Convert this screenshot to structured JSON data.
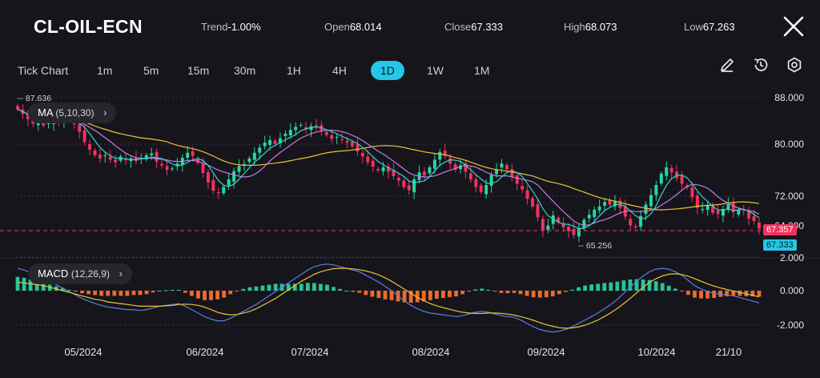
{
  "header": {
    "symbol": "CL-OIL-ECN",
    "trend": {
      "label": "Trend",
      "value": "-1.00%"
    },
    "open": {
      "label": "Open",
      "value": "68.014"
    },
    "close": {
      "label": "Close",
      "value": "67.333"
    },
    "high": {
      "label": "High",
      "value": "68.073"
    },
    "low": {
      "label": "Low",
      "value": "67.263"
    },
    "close_icon": "close-x-icon"
  },
  "timeframes": [
    {
      "label": "Tick Chart",
      "active": false
    },
    {
      "label": "1m",
      "active": false
    },
    {
      "label": "5m",
      "active": false
    },
    {
      "label": "15m",
      "active": false
    },
    {
      "label": "30m",
      "active": false
    },
    {
      "label": "1H",
      "active": false
    },
    {
      "label": "4H",
      "active": false
    },
    {
      "label": "1D",
      "active": true
    },
    {
      "label": "1W",
      "active": false
    },
    {
      "label": "1M",
      "active": false
    }
  ],
  "tools": [
    "pencil-icon",
    "history-icon",
    "settings-icon"
  ],
  "main_pane": {
    "indicator": {
      "name": "MA",
      "params": "(5,10,30)"
    },
    "y_ticks": [
      "88.000",
      "80.000",
      "72.000",
      "64.000"
    ],
    "max_label": "87.636",
    "min_label": "65.256",
    "price_badge_red": "67.357",
    "price_badge_cyan": "67.333"
  },
  "macd_pane": {
    "indicator": {
      "name": "MACD",
      "params": "(12,26,9)"
    },
    "y_ticks": [
      "2.000",
      "0.000",
      "-2.000"
    ]
  },
  "x_labels": [
    "05/2024",
    "06/2024",
    "07/2024",
    "08/2024",
    "09/2024",
    "10/2024",
    "21/10"
  ],
  "colors": {
    "background": "#16151c",
    "up": "#26d8a1",
    "down": "#f1325f",
    "ma5": "#2fd6d0",
    "ma10": "#c27ee6",
    "ma30": "#e8c537",
    "macd_line": "#5b7fe0",
    "signal_line": "#e8c537",
    "hist_pos": "#26c598",
    "hist_neg": "#f06a2c",
    "accent": "#25c6e6"
  },
  "chart_data": {
    "type": "candlestick",
    "x_range": [
      "2024-04-24",
      "2024-10-23"
    ],
    "ylim": [
      62,
      90
    ],
    "closes": [
      86.2,
      85.4,
      84.6,
      83.9,
      84.5,
      83.6,
      84.2,
      84.8,
      84.0,
      84.9,
      84.4,
      83.8,
      82.6,
      81.0,
      79.8,
      78.9,
      78.4,
      78.9,
      78.2,
      77.8,
      78.7,
      78.1,
      78.4,
      78.0,
      78.5,
      78.9,
      79.2,
      77.9,
      77.3,
      76.6,
      76.8,
      77.6,
      78.5,
      79.3,
      78.8,
      77.7,
      76.1,
      74.6,
      73.3,
      72.9,
      73.9,
      75.1,
      76.4,
      77.2,
      77.5,
      78.4,
      79.3,
      80.1,
      80.9,
      81.3,
      80.7,
      81.6,
      82.3,
      82.9,
      83.4,
      83.7,
      83.0,
      83.5,
      83.3,
      82.8,
      82.1,
      81.5,
      81.8,
      81.3,
      80.9,
      80.3,
      79.5,
      78.7,
      77.8,
      77.1,
      76.5,
      77.0,
      76.3,
      75.6,
      74.9,
      73.9,
      73.4,
      75.1,
      76.2,
      75.7,
      77.0,
      78.2,
      79.4,
      78.8,
      77.6,
      76.6,
      77.3,
      76.3,
      75.1,
      73.9,
      73.1,
      74.2,
      75.8,
      76.6,
      77.6,
      76.7,
      75.5,
      74.4,
      73.5,
      72.0,
      70.8,
      69.1,
      67.1,
      67.8,
      69.4,
      68.3,
      67.5,
      66.9,
      66.3,
      67.4,
      68.7,
      69.5,
      70.3,
      70.8,
      71.5,
      71.1,
      71.7,
      70.6,
      69.2,
      67.8,
      67.5,
      69.3,
      71.1,
      72.6,
      74.2,
      76.0,
      77.0,
      76.2,
      75.3,
      74.4,
      73.8,
      72.3,
      70.6,
      70.4,
      71.0,
      69.8,
      69.6,
      70.4,
      71.2,
      69.9,
      70.3,
      70.1,
      68.9,
      68.5,
      67.3
    ],
    "macd": [
      1.3,
      1.2,
      1.05,
      0.9,
      0.7,
      0.55,
      0.35,
      0.15,
      -0.05,
      -0.25,
      -0.45,
      -0.6,
      -0.75,
      -0.85,
      -0.95,
      -1.0,
      -1.05,
      -1.1,
      -1.1,
      -1.15,
      -1.1,
      -1.0,
      -0.9,
      -0.85,
      -0.8,
      -0.75,
      -0.9,
      -1.1,
      -1.3,
      -1.5,
      -1.65,
      -1.75,
      -1.75,
      -1.6,
      -1.4,
      -1.2,
      -1.0,
      -0.8,
      -0.55,
      -0.3,
      -0.05,
      0.2,
      0.45,
      0.7,
      0.95,
      1.2,
      1.4,
      1.5,
      1.55,
      1.5,
      1.4,
      1.3,
      1.2,
      1.1,
      0.9,
      0.7,
      0.5,
      0.25,
      0.0,
      -0.3,
      -0.6,
      -0.85,
      -1.05,
      -1.2,
      -1.3,
      -1.35,
      -1.4,
      -1.45,
      -1.5,
      -1.45,
      -1.35,
      -1.25,
      -1.2,
      -1.25,
      -1.35,
      -1.45,
      -1.5,
      -1.55,
      -1.7,
      -1.9,
      -2.1,
      -2.25,
      -2.35,
      -2.4,
      -2.35,
      -2.25,
      -2.1,
      -1.9,
      -1.7,
      -1.5,
      -1.3,
      -1.05,
      -0.8,
      -0.5,
      -0.15,
      0.2,
      0.55,
      0.85,
      1.1,
      1.25,
      1.3,
      1.25,
      1.1,
      0.9,
      0.6,
      0.3,
      0.1,
      -0.05,
      -0.15,
      -0.2,
      -0.25,
      -0.3,
      -0.4,
      -0.5,
      -0.6,
      -0.7
    ],
    "signal": [
      0.5,
      0.45,
      0.4,
      0.35,
      0.3,
      0.2,
      0.1,
      0.0,
      -0.1,
      -0.2,
      -0.3,
      -0.4,
      -0.5,
      -0.55,
      -0.65,
      -0.7,
      -0.75,
      -0.8,
      -0.85,
      -0.9,
      -0.9,
      -0.9,
      -0.9,
      -0.88,
      -0.85,
      -0.8,
      -0.78,
      -0.8,
      -0.85,
      -0.95,
      -1.1,
      -1.25,
      -1.35,
      -1.4,
      -1.38,
      -1.3,
      -1.2,
      -1.05,
      -0.85,
      -0.65,
      -0.45,
      -0.2,
      0.05,
      0.3,
      0.55,
      0.75,
      0.95,
      1.1,
      1.2,
      1.28,
      1.3,
      1.3,
      1.27,
      1.22,
      1.15,
      1.05,
      0.92,
      0.75,
      0.55,
      0.32,
      0.08,
      -0.15,
      -0.38,
      -0.58,
      -0.75,
      -0.88,
      -0.98,
      -1.08,
      -1.17,
      -1.25,
      -1.3,
      -1.32,
      -1.32,
      -1.3,
      -1.3,
      -1.32,
      -1.36,
      -1.42,
      -1.5,
      -1.6,
      -1.72,
      -1.85,
      -1.97,
      -2.07,
      -2.15,
      -2.18,
      -2.16,
      -2.1,
      -2.0,
      -1.86,
      -1.7,
      -1.5,
      -1.28,
      -1.03,
      -0.75,
      -0.45,
      -0.12,
      0.2,
      0.48,
      0.7,
      0.86,
      0.96,
      0.98,
      0.94,
      0.84,
      0.7,
      0.55,
      0.4,
      0.27,
      0.16,
      0.07,
      -0.02,
      -0.1,
      -0.18,
      -0.27,
      -0.36
    ]
  }
}
